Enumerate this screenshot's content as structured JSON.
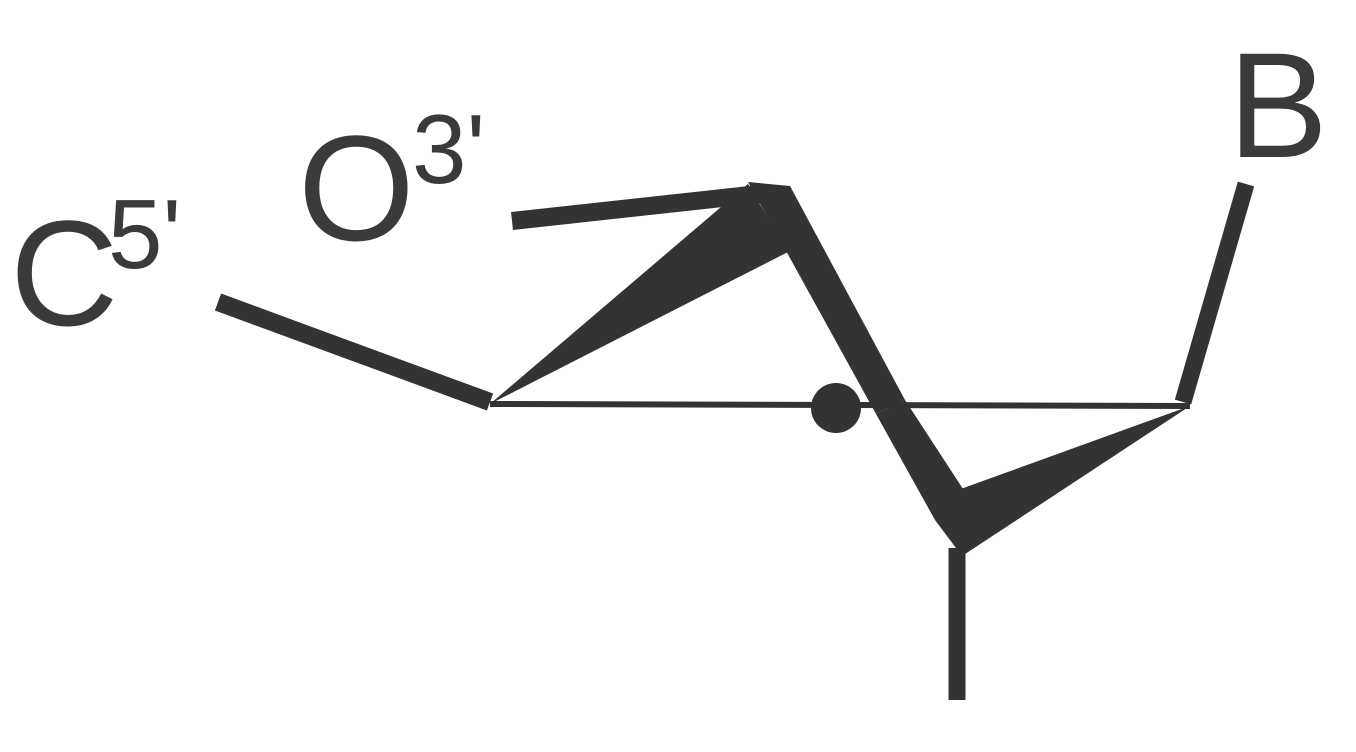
{
  "labels": {
    "c5": {
      "symbol": "C",
      "superscript": "5'"
    },
    "o3": {
      "symbol": "O",
      "superscript": "3'"
    },
    "base": {
      "symbol": "B"
    }
  },
  "colors": {
    "ink": "#333333",
    "label": "#3a3a3a",
    "background": "#ffffff"
  }
}
